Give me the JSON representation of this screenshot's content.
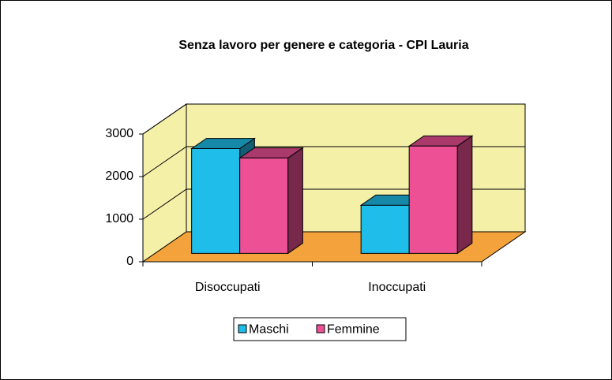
{
  "chart_data": {
    "type": "bar3d",
    "title": "Senza lavoro per genere e categoria - CPI Lauria",
    "categories": [
      "Disoccupati",
      "Inoccupati"
    ],
    "series": [
      {
        "name": "Maschi",
        "color": "#1fbde9",
        "values": [
          2460,
          1130
        ]
      },
      {
        "name": "Femmine",
        "color": "#ee5096",
        "values": [
          2240,
          2520
        ]
      }
    ],
    "ylim": [
      0,
      3000
    ],
    "yticks": [
      0,
      1000,
      2000,
      3000
    ],
    "grid": true,
    "wall_color": "#f5f0a8",
    "floor_color": "#f4a33c",
    "legend": "bottom"
  }
}
